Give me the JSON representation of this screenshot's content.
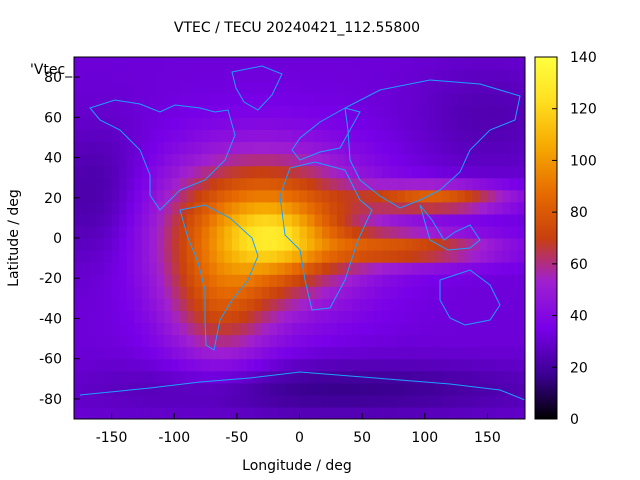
{
  "chart_data": {
    "type": "heatmap",
    "title": "VTEC / TECU 20240421_112.55800",
    "xlabel": "Longitude / deg",
    "ylabel": "Latitude / deg",
    "key_label": "'Vtec_",
    "xlim": [
      -180,
      180
    ],
    "ylim": [
      -90,
      90
    ],
    "x_ticks": [
      -150,
      -100,
      -50,
      0,
      50,
      100,
      150
    ],
    "y_ticks": [
      -80,
      -60,
      -40,
      -20,
      0,
      20,
      40,
      60,
      80
    ],
    "colorbar": {
      "range": [
        0,
        140
      ],
      "ticks": [
        0,
        20,
        40,
        60,
        80,
        100,
        120,
        140
      ],
      "palette": "gnuplot-pm3d-default",
      "colors": [
        "#000000",
        "#3a0090",
        "#7800e8",
        "#a020d0",
        "#c8400e",
        "#e66a00",
        "#f6a800",
        "#ffe020",
        "#ffff40"
      ]
    },
    "grid": false,
    "legend": "top-left",
    "overlay": "coastlines",
    "field_description_points": [
      {
        "lon": -30,
        "lat": 10,
        "vtec": 115
      },
      {
        "lon": -20,
        "lat": 0,
        "vtec": 125
      },
      {
        "lon": -60,
        "lat": -30,
        "vtec": 80
      },
      {
        "lon": 100,
        "lat": 20,
        "vtec": 85
      },
      {
        "lon": 100,
        "lat": -5,
        "vtec": 75
      },
      {
        "lon": -150,
        "lat": 0,
        "vtec": 35
      },
      {
        "lon": 0,
        "lat": 80,
        "vtec": 35
      },
      {
        "lon": 0,
        "lat": -80,
        "vtec": 15
      }
    ]
  }
}
